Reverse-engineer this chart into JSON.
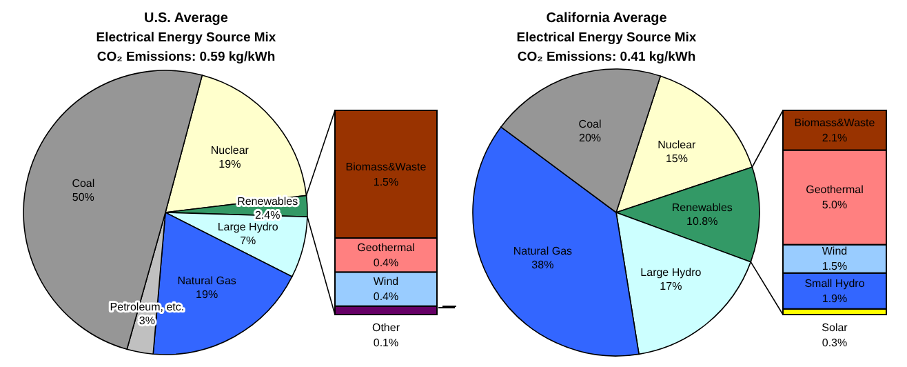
{
  "chart_data": [
    {
      "type": "pie",
      "title": "U.S. Average",
      "subtitle": "Electrical Energy Source Mix",
      "annotations": [
        "CO₂ Emissions: 0.59 kg/kWh"
      ],
      "categories": [
        "Nuclear",
        "Renewables",
        "Large Hydro",
        "Natural Gas",
        "Petroleum, etc.",
        "Coal"
      ],
      "values": [
        19,
        2.4,
        7,
        19,
        3,
        50
      ],
      "value_labels": [
        "19%",
        "2.4%",
        "7%",
        "19%",
        "3%",
        "50%"
      ],
      "colors": [
        "#ffffcc",
        "#339966",
        "#ccffff",
        "#3366ff",
        "#c0c0c0",
        "#969696"
      ]
    },
    {
      "type": "bar",
      "stacked": true,
      "categories": [
        null
      ],
      "series": [
        {
          "name": "Other",
          "color": "#660066",
          "values": [
            0.1
          ],
          "value_labels": [
            "0.1%"
          ]
        },
        {
          "name": "Wind",
          "color": "#99ccff",
          "values": [
            0.4
          ],
          "value_labels": [
            "0.4%"
          ]
        },
        {
          "name": "Geothermal",
          "color": "#ff8080",
          "values": [
            0.4
          ],
          "value_labels": [
            "0.4%"
          ]
        },
        {
          "name": "Biomass&Waste",
          "color": "#993300",
          "values": [
            1.5
          ],
          "value_labels": [
            "1.5%"
          ]
        }
      ]
    },
    {
      "type": "pie",
      "title": "California Average",
      "subtitle": "Electrical Energy Source Mix",
      "annotations": [
        "CO₂ Emissions: 0.41 kg/kWh"
      ],
      "categories": [
        "Nuclear",
        "Renewables",
        "Large Hydro",
        "Natural Gas",
        "Coal"
      ],
      "values": [
        15,
        10.8,
        17,
        38,
        20
      ],
      "value_labels": [
        "15%",
        "10.8%",
        "17%",
        "38%",
        "20%"
      ],
      "colors": [
        "#ffffcc",
        "#339966",
        "#ccffff",
        "#3366ff",
        "#969696"
      ]
    },
    {
      "type": "bar",
      "stacked": true,
      "categories": [
        null
      ],
      "series": [
        {
          "name": "Solar",
          "color": "#ffff00",
          "values": [
            0.3
          ],
          "value_labels": [
            "0.3%"
          ]
        },
        {
          "name": "Small Hydro",
          "color": "#3366ff",
          "values": [
            1.9
          ],
          "value_labels": [
            "1.9%"
          ]
        },
        {
          "name": "Wind",
          "color": "#99ccff",
          "values": [
            1.5
          ],
          "value_labels": [
            "1.5%"
          ]
        },
        {
          "name": "Geothermal",
          "color": "#ff8080",
          "values": [
            5.0
          ],
          "value_labels": [
            "5.0%"
          ]
        },
        {
          "name": "Biomass&Waste",
          "color": "#993300",
          "values": [
            2.1
          ],
          "value_labels": [
            "2.1%"
          ]
        }
      ]
    }
  ]
}
